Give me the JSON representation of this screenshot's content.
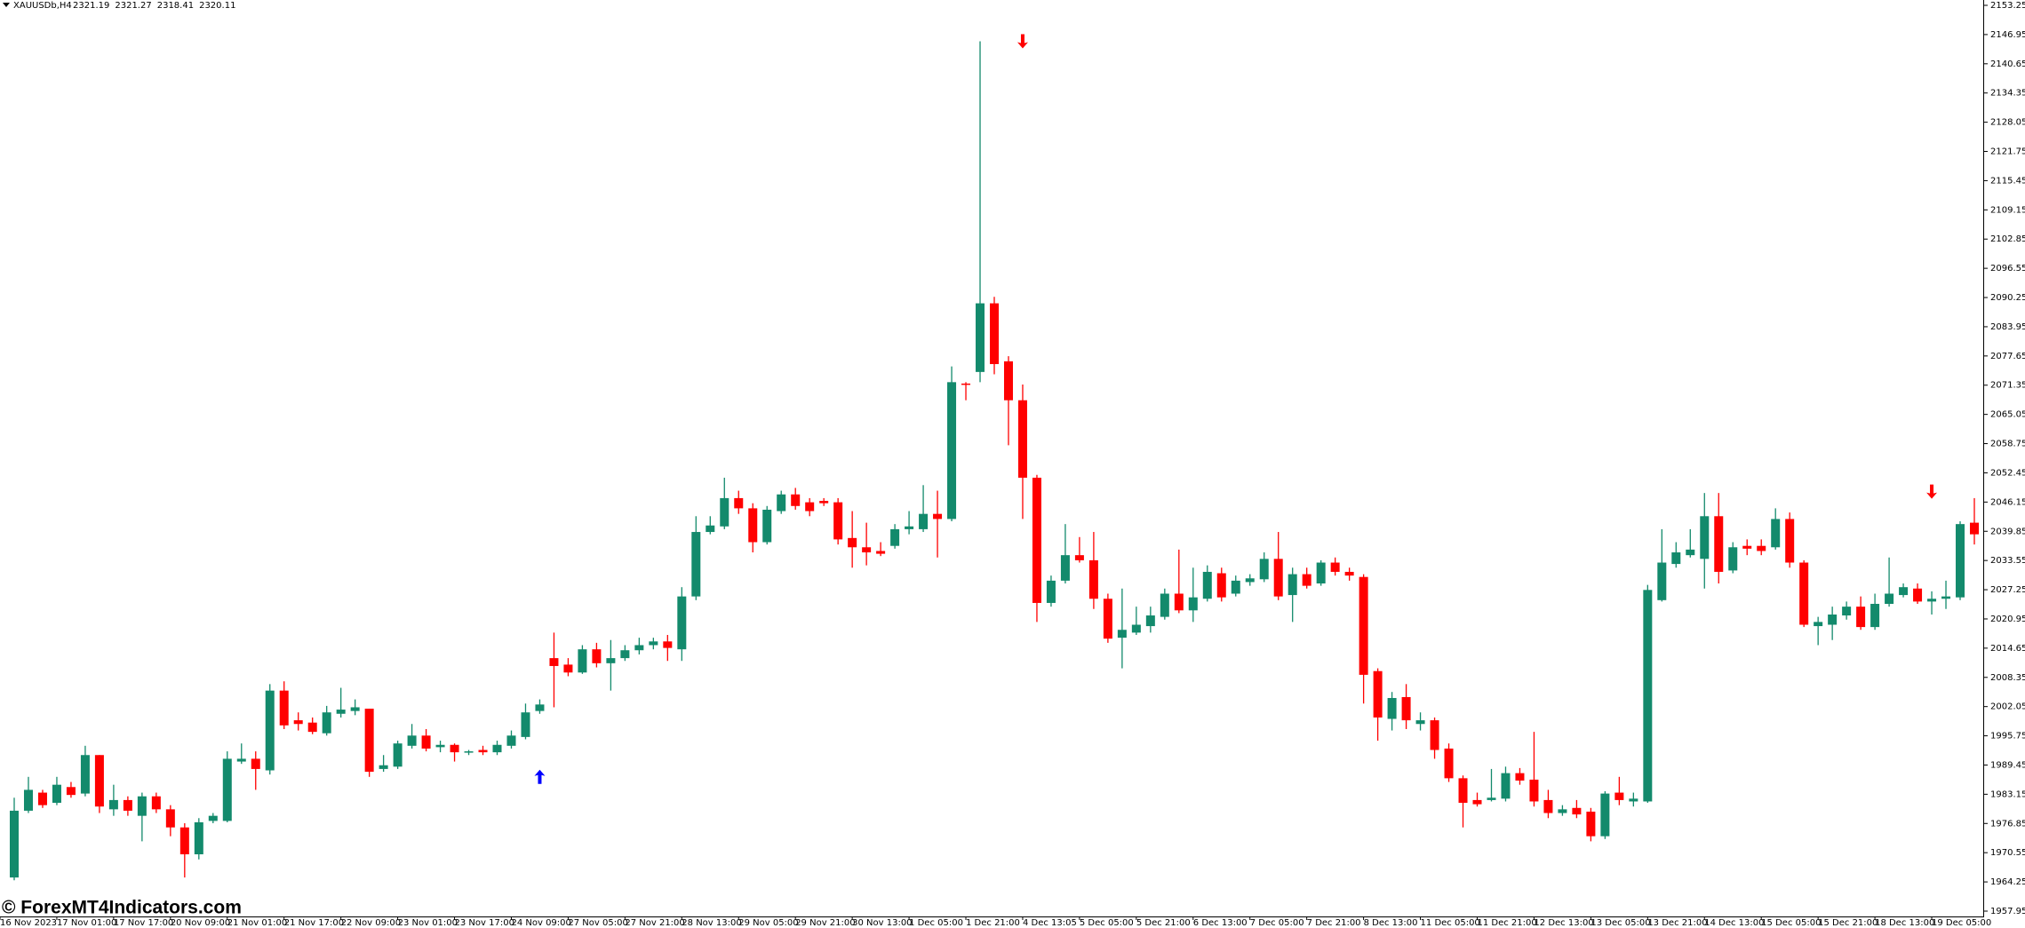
{
  "chart_data": {
    "type": "candlestick",
    "symbol": "XAUUSDb,H4",
    "quote": [
      2321.19,
      2321.27,
      2318.41,
      2320.11
    ],
    "watermark": "© ForexMT4Indicators.com",
    "up_color": "#138a6c",
    "down_color": "#ff0000",
    "signal_up_color": "#0000ff",
    "signal_down_color": "#ff0000",
    "ylim": [
      1956.8,
      2154.4
    ],
    "yticks": [
      2153.25,
      2146.95,
      2140.65,
      2134.35,
      2128.05,
      2121.75,
      2115.45,
      2109.15,
      2102.85,
      2096.55,
      2090.25,
      2083.95,
      2077.65,
      2071.35,
      2065.05,
      2058.75,
      2052.45,
      2046.15,
      2039.85,
      2033.55,
      2027.25,
      2020.95,
      2014.65,
      2008.35,
      2002.05,
      1995.75,
      1989.45,
      1983.15,
      1976.85,
      1970.55,
      1964.25,
      1957.95
    ],
    "grid": false,
    "categories": [
      "16 Nov 2023",
      null,
      null,
      null,
      "17 Nov 01:00",
      null,
      null,
      null,
      "17 Nov 17:00",
      null,
      null,
      null,
      "20 Nov 09:00",
      null,
      null,
      null,
      "21 Nov 01:00",
      null,
      null,
      null,
      "21 Nov 17:00",
      null,
      null,
      null,
      "22 Nov 09:00",
      null,
      null,
      null,
      "23 Nov 01:00",
      null,
      null,
      null,
      "23 Nov 17:00",
      null,
      null,
      null,
      "24 Nov 09:00",
      null,
      null,
      null,
      "27 Nov 05:00",
      null,
      null,
      null,
      "27 Nov 21:00",
      null,
      null,
      null,
      "28 Nov 13:00",
      null,
      null,
      null,
      "29 Nov 05:00",
      null,
      null,
      null,
      "29 Nov 21:00",
      null,
      null,
      null,
      "30 Nov 13:00",
      null,
      null,
      null,
      "1 Dec 05:00",
      null,
      null,
      null,
      "1 Dec 21:00",
      null,
      null,
      null,
      "4 Dec 13:05",
      null,
      null,
      null,
      "5 Dec 05:00",
      null,
      null,
      null,
      "5 Dec 21:00",
      null,
      null,
      null,
      "6 Dec 13:00",
      null,
      null,
      null,
      "7 Dec 05:00",
      null,
      null,
      null,
      "7 Dec 21:00",
      null,
      null,
      null,
      "8 Dec 13:00",
      null,
      null,
      null,
      "11 Dec 05:00",
      null,
      null,
      null,
      "11 Dec 21:00",
      null,
      null,
      null,
      "12 Dec 13:00",
      null,
      null,
      null,
      "13 Dec 05:00",
      null,
      null,
      null,
      "13 Dec 21:00",
      null,
      null,
      null,
      "14 Dec 13:00",
      null,
      null,
      null,
      "15 Dec 05:00",
      null,
      null,
      null,
      "15 Dec 21:00",
      null,
      null,
      null,
      "18 Dec 13:00",
      null,
      null,
      null,
      "19 Dec 05:00",
      null,
      null
    ],
    "open": [
      1965.2,
      1979.6,
      1983.5,
      1981.3,
      1984.7,
      1983.3,
      1991.6,
      1979.9,
      1981.9,
      1978.5,
      1982.7,
      1979.9,
      1976.0,
      1970.2,
      1977.4,
      1977.4,
      1990.2,
      1990.8,
      1988.3,
      2005.5,
      1999.1,
      1998.6,
      1996.3,
      2000.5,
      2001.1,
      2001.6,
      1988.6,
      1989.1,
      1993.6,
      1995.8,
      1993.3,
      1993.8,
      1992.2,
      1992.7,
      1992.2,
      1993.6,
      1995.5,
      2001.1,
      2012.5,
      2011.1,
      2009.4,
      2014.4,
      2011.4,
      2012.5,
      2014.2,
      2015.3,
      2016.1,
      2014.4,
      2025.8,
      2039.7,
      2040.9,
      2047.0,
      2044.8,
      2037.5,
      2044.2,
      2047.8,
      2046.1,
      2046.4,
      2046.1,
      2038.4,
      2036.4,
      2035.6,
      2036.7,
      2040.3,
      2040.3,
      2043.6,
      2042.5,
      2071.7,
      2074.2,
      2089.0,
      2076.5,
      2068.1,
      2051.4,
      2024.4,
      2029.2,
      2034.7,
      2033.6,
      2025.3,
      2016.9,
      2018.0,
      2019.4,
      2021.4,
      2026.4,
      2022.8,
      2025.3,
      2030.8,
      2026.4,
      2028.9,
      2029.5,
      2033.9,
      2026.1,
      2030.6,
      2028.6,
      2033.1,
      2031.1,
      2030.0,
      2009.7,
      1999.4,
      2004.1,
      1998.3,
      1999.1,
      1993.0,
      1986.6,
      1981.9,
      1981.9,
      1982.2,
      1987.7,
      1986.3,
      1981.9,
      1979.1,
      1980.2,
      1979.4,
      1974.1,
      1983.5,
      1981.6,
      1981.6,
      2025.0,
      2032.8,
      2034.7,
      2033.9,
      2043.1,
      2031.4,
      2036.7,
      2036.7,
      2036.4,
      2042.5,
      2033.1,
      2019.4,
      2019.7,
      2021.7,
      2023.6,
      2019.2,
      2024.2,
      2026.1,
      2027.5,
      2024.7,
      2025.3,
      2025.6,
      2041.7
    ],
    "high": [
      1982.4,
      1986.9,
      1984.1,
      1986.9,
      1985.8,
      1993.6,
      1991.6,
      1985.2,
      1982.7,
      1983.5,
      1983.5,
      1980.8,
      1976.9,
      1978.0,
      1979.1,
      1992.4,
      1994.1,
      1992.4,
      2006.9,
      2007.5,
      2000.8,
      1999.7,
      2002.2,
      2006.1,
      2003.6,
      2001.6,
      1991.6,
      1994.7,
      1998.3,
      1997.2,
      1994.7,
      1994.1,
      1992.7,
      1993.6,
      1994.7,
      1996.9,
      2002.7,
      2003.6,
      2018.0,
      2012.5,
      2015.3,
      2015.8,
      2016.4,
      2015.3,
      2016.9,
      2016.9,
      2017.5,
      2027.8,
      2043.1,
      2043.1,
      2051.4,
      2048.6,
      2045.9,
      2045.3,
      2048.6,
      2049.2,
      2047.0,
      2047.0,
      2047.0,
      2044.2,
      2041.7,
      2037.5,
      2041.4,
      2044.2,
      2049.8,
      2048.6,
      2075.4,
      2072.0,
      2145.5,
      2090.4,
      2077.6,
      2071.5,
      2052.0,
      2030.3,
      2041.4,
      2038.6,
      2039.7,
      2026.4,
      2027.5,
      2023.6,
      2023.6,
      2027.5,
      2035.9,
      2032.0,
      2032.5,
      2032.0,
      2030.3,
      2030.6,
      2035.3,
      2039.7,
      2032.0,
      2032.0,
      2033.6,
      2034.2,
      2032.0,
      2030.6,
      2010.3,
      2005.2,
      2006.9,
      2000.8,
      1999.7,
      1994.1,
      1987.2,
      1983.5,
      1988.6,
      1989.1,
      1988.8,
      1996.6,
      1984.1,
      1980.8,
      1981.9,
      1980.2,
      1983.8,
      1986.9,
      1983.5,
      2028.3,
      2040.3,
      2037.5,
      2040.3,
      2048.1,
      2048.1,
      2037.5,
      2038.1,
      2038.1,
      2044.8,
      2043.9,
      2033.6,
      2021.4,
      2023.6,
      2024.7,
      2025.8,
      2026.4,
      2034.2,
      2028.6,
      2028.6,
      2026.9,
      2029.2,
      2042.0,
      2047.0
    ],
    "low": [
      1964.6,
      1979.1,
      1980.2,
      1980.8,
      1982.4,
      1982.7,
      1979.1,
      1978.5,
      1978.5,
      1973.0,
      1979.1,
      1974.1,
      1965.2,
      1969.1,
      1976.9,
      1977.1,
      1989.7,
      1984.1,
      1987.4,
      1997.2,
      1996.9,
      1996.1,
      1995.8,
      1999.7,
      2000.2,
      1986.9,
      1988.0,
      1988.6,
      1993.0,
      1992.4,
      1992.2,
      1990.2,
      1991.6,
      1991.6,
      1991.6,
      1993.0,
      1995.0,
      2000.5,
      2001.9,
      2008.6,
      2009.1,
      2010.5,
      2005.5,
      2011.9,
      2013.3,
      2014.4,
      2011.9,
      2011.9,
      2025.0,
      2039.2,
      2040.3,
      2043.6,
      2035.3,
      2037.0,
      2043.6,
      2044.5,
      2043.1,
      2045.3,
      2037.0,
      2032.0,
      2032.5,
      2034.5,
      2036.1,
      2039.2,
      2039.7,
      2034.2,
      2042.0,
      2068.1,
      2072.0,
      2073.7,
      2058.4,
      2042.5,
      2020.3,
      2023.6,
      2028.6,
      2033.1,
      2023.1,
      2015.8,
      2010.3,
      2017.5,
      2018.0,
      2020.8,
      2022.2,
      2020.3,
      2024.7,
      2024.7,
      2025.8,
      2028.1,
      2028.9,
      2025.0,
      2020.3,
      2027.5,
      2028.1,
      2030.3,
      2029.2,
      2002.7,
      1994.7,
      1996.9,
      1997.2,
      1996.9,
      1990.8,
      1985.8,
      1976.0,
      1980.5,
      1981.6,
      1981.6,
      1985.2,
      1980.5,
      1978.0,
      1978.5,
      1978.0,
      1973.0,
      1973.5,
      1980.8,
      1980.5,
      1981.3,
      2024.7,
      2032.0,
      2034.2,
      2027.5,
      2028.6,
      2030.8,
      2034.7,
      2034.7,
      2035.9,
      2032.0,
      2019.2,
      2015.3,
      2016.4,
      2020.8,
      2018.6,
      2018.6,
      2023.6,
      2025.6,
      2024.2,
      2021.9,
      2023.1,
      2025.0,
      2037.0
    ],
    "close": [
      1979.6,
      1984.1,
      1980.8,
      1985.2,
      1983.0,
      1991.6,
      1980.5,
      1981.9,
      1979.6,
      1982.7,
      1979.9,
      1976.0,
      1970.2,
      1977.1,
      1978.5,
      1990.8,
      1990.8,
      1988.6,
      2005.5,
      1998.0,
      1998.3,
      1996.6,
      2000.8,
      2001.4,
      2001.9,
      1988.0,
      1989.4,
      1994.1,
      1995.8,
      1993.0,
      1993.8,
      1992.2,
      1992.4,
      1992.2,
      1993.8,
      1995.8,
      2000.8,
      2002.5,
      2010.8,
      2009.4,
      2014.4,
      2011.4,
      2012.5,
      2014.2,
      2015.3,
      2016.1,
      2014.7,
      2025.8,
      2039.7,
      2041.1,
      2047.0,
      2044.8,
      2037.5,
      2044.5,
      2047.8,
      2045.3,
      2044.2,
      2045.9,
      2038.1,
      2036.4,
      2035.3,
      2035.0,
      2040.3,
      2040.9,
      2043.6,
      2042.5,
      2072.0,
      2071.5,
      2089.0,
      2075.9,
      2068.1,
      2051.4,
      2024.4,
      2029.2,
      2034.7,
      2033.6,
      2025.3,
      2016.7,
      2018.6,
      2019.7,
      2021.7,
      2026.4,
      2022.8,
      2025.6,
      2031.1,
      2025.6,
      2029.2,
      2029.7,
      2033.9,
      2025.8,
      2030.6,
      2028.1,
      2033.1,
      2031.1,
      2030.3,
      2008.9,
      1999.7,
      2003.9,
      1999.1,
      1999.1,
      1992.7,
      1986.6,
      1981.3,
      1981.0,
      1982.4,
      1987.7,
      1986.1,
      1981.6,
      1979.1,
      1979.9,
      1978.8,
      1974.1,
      1983.3,
      1981.9,
      1982.2,
      2027.2,
      2033.1,
      2035.3,
      2035.9,
      2043.1,
      2031.1,
      2036.4,
      2036.1,
      2035.6,
      2042.5,
      2033.1,
      2019.7,
      2020.3,
      2021.9,
      2023.6,
      2019.2,
      2024.2,
      2026.4,
      2027.8,
      2024.7,
      2025.3,
      2025.8,
      2041.4,
      2039.2
    ],
    "up_arrows": [
      {
        "index": 37,
        "value": 1986.9
      }
    ],
    "down_arrows": [
      {
        "index": 71,
        "value": 2145.5
      },
      {
        "index": 135,
        "value": 2048.4
      }
    ]
  }
}
